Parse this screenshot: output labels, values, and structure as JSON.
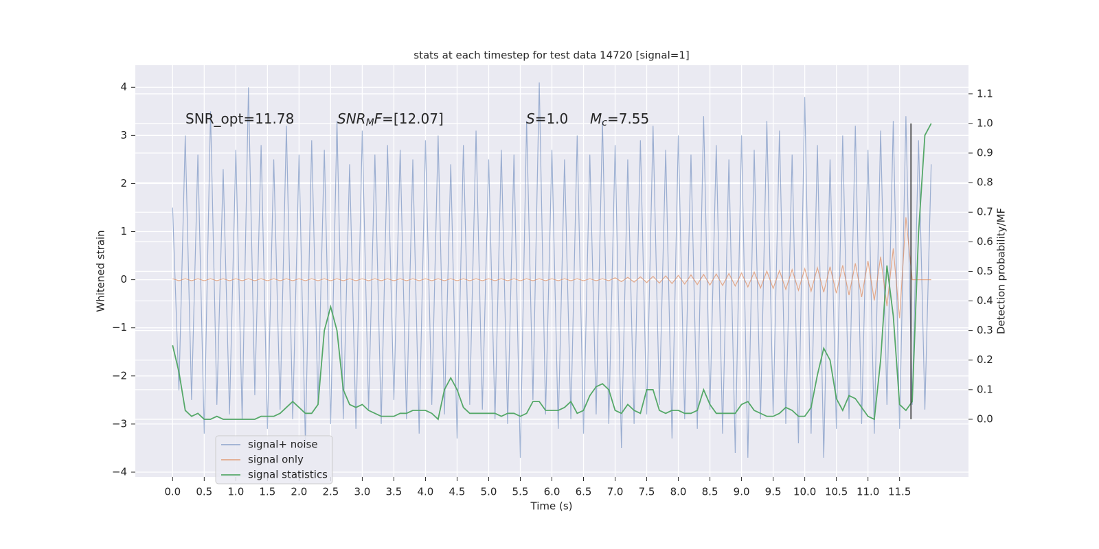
{
  "chart_data": {
    "type": "line",
    "title": "stats at each timestep for test data 14720 [signal=1]",
    "xlabel": "Time (s)",
    "ylabel": "Whitened strain",
    "y2label": "Detection probability/MF",
    "xlim": [
      -0.59,
      12.59
    ],
    "ylim": [
      -4.1,
      4.46
    ],
    "y2lim": [
      -0.195,
      1.197
    ],
    "xticks": [
      {
        "value": 0,
        "label": "0.0"
      },
      0.5,
      {
        "value": 1,
        "label": "1.0"
      },
      1.5,
      {
        "value": 2,
        "label": "2.0"
      },
      2.5,
      {
        "value": 3,
        "label": "3.0"
      },
      3.5,
      {
        "value": 4,
        "label": "4.0"
      },
      4.5,
      {
        "value": 5,
        "label": "5.0"
      },
      5.5,
      {
        "value": 6,
        "label": "6.0"
      },
      6.5,
      {
        "value": 7,
        "label": "7.0"
      },
      7.5,
      {
        "value": 8,
        "label": "8.0"
      },
      8.5,
      {
        "value": 9,
        "label": "9.0"
      },
      9.5,
      {
        "value": 10,
        "label": "10.0"
      },
      10.5,
      {
        "value": 11,
        "label": "11.0"
      },
      11.5
    ],
    "yticks": [
      {
        "value": -4,
        "label": "−4"
      },
      {
        "value": -3,
        "label": "−3"
      },
      {
        "value": -2,
        "label": "−2"
      },
      {
        "value": -1,
        "label": "−1"
      },
      0,
      1,
      2,
      3,
      4
    ],
    "y2ticks": [
      {
        "value": 0,
        "label": "0.0"
      },
      0.1,
      0.2,
      0.3,
      0.4,
      0.5,
      0.6,
      0.7,
      0.8,
      0.9,
      {
        "value": 1,
        "label": "1.0"
      },
      1.1
    ],
    "grid": true,
    "legend": "lower left",
    "x": [
      0,
      0.1,
      0.2,
      0.3,
      0.4,
      0.5,
      0.6,
      0.7,
      0.8,
      0.9,
      1,
      1.1,
      1.2,
      1.3,
      1.4,
      1.5,
      1.6,
      1.7,
      1.8,
      1.9,
      2,
      2.1,
      2.2,
      2.3,
      2.4,
      2.5,
      2.6,
      2.7,
      2.8,
      2.9,
      3,
      3.1,
      3.2,
      3.3,
      3.4,
      3.5,
      3.6,
      3.7,
      3.8,
      3.9,
      4,
      4.1,
      4.2,
      4.3,
      4.4,
      4.5,
      4.6,
      4.7,
      4.8,
      4.9,
      5,
      5.1,
      5.2,
      5.3,
      5.4,
      5.5,
      5.6,
      5.7,
      5.8,
      5.9,
      6,
      6.1,
      6.2,
      6.3,
      6.4,
      6.5,
      6.6,
      6.7,
      6.8,
      6.9,
      7,
      7.1,
      7.2,
      7.3,
      7.4,
      7.5,
      7.6,
      7.7,
      7.8,
      7.9,
      8,
      8.1,
      8.2,
      8.3,
      8.4,
      8.5,
      8.6,
      8.7,
      8.8,
      8.9,
      9,
      9.1,
      9.2,
      9.3,
      9.4,
      9.5,
      9.6,
      9.7,
      9.8,
      9.9,
      10,
      10.1,
      10.2,
      10.3,
      10.4,
      10.5,
      10.6,
      10.7,
      10.8,
      10.9,
      11,
      11.1,
      11.2,
      11.3,
      11.4,
      11.5,
      11.6,
      11.7,
      11.8,
      11.9,
      12
    ],
    "series": [
      {
        "name": "signal+ noise",
        "color": "#4c72b0",
        "opacity": 0.5,
        "values": [
          1.5,
          -2.3,
          3.0,
          -2.5,
          2.6,
          -3.2,
          3.5,
          -2.6,
          2.3,
          -2.8,
          2.7,
          -2.9,
          4.0,
          -2.4,
          2.8,
          -3.1,
          2.5,
          -2.7,
          3.2,
          -2.9,
          2.6,
          -3.4,
          2.9,
          -2.6,
          2.7,
          -3.0,
          3.3,
          -2.9,
          2.4,
          -3.1,
          3.1,
          -2.7,
          2.6,
          -3.0,
          2.8,
          -2.5,
          2.7,
          -2.9,
          2.5,
          -3.2,
          2.9,
          -2.6,
          3.0,
          -2.8,
          2.4,
          -3.3,
          2.8,
          -2.6,
          3.1,
          -2.7,
          2.5,
          -2.9,
          2.7,
          -3.0,
          2.6,
          -3.7,
          3.3,
          -2.5,
          4.1,
          -2.8,
          2.7,
          -3.1,
          2.5,
          -2.9,
          3.0,
          -3.2,
          2.6,
          -2.8,
          3.3,
          -3.0,
          2.8,
          -3.5,
          2.5,
          -3.0,
          2.9,
          -2.8,
          3.2,
          -2.6,
          2.7,
          -3.3,
          3.0,
          -2.9,
          2.6,
          -3.1,
          3.4,
          -2.7,
          2.8,
          -3.2,
          2.5,
          -3.6,
          3.0,
          -3.7,
          2.7,
          -2.9,
          3.3,
          -2.8,
          3.1,
          -3.0,
          2.6,
          -3.4,
          3.8,
          -3.2,
          2.8,
          -3.7,
          2.5,
          -3.1,
          3.0,
          -2.9,
          3.2,
          -3.0,
          2.7,
          -3.2,
          3.1,
          -2.6,
          3.3,
          -3.1,
          3.4,
          -2.6,
          2.9,
          -2.7,
          2.4
        ]
      },
      {
        "name": "signal only",
        "color": "#dd8452",
        "opacity": 0.65,
        "values": [
          0.02,
          -0.02,
          0.02,
          -0.02,
          0.02,
          -0.02,
          0.02,
          -0.02,
          0.02,
          -0.02,
          0.02,
          -0.02,
          0.02,
          -0.02,
          0.02,
          -0.02,
          0.02,
          -0.02,
          0.02,
          -0.02,
          0.02,
          -0.02,
          0.02,
          -0.02,
          0.02,
          -0.02,
          0.02,
          -0.02,
          0.02,
          -0.02,
          0.02,
          -0.02,
          0.02,
          -0.02,
          0.02,
          -0.02,
          0.02,
          -0.02,
          0.02,
          -0.02,
          0.02,
          -0.02,
          0.02,
          -0.02,
          0.02,
          -0.02,
          0.02,
          -0.02,
          0.02,
          -0.02,
          0.02,
          -0.02,
          0.02,
          -0.02,
          0.02,
          -0.02,
          0.02,
          -0.02,
          0.02,
          -0.02,
          0.02,
          -0.02,
          0.02,
          -0.02,
          0.02,
          -0.02,
          0.02,
          -0.02,
          0.02,
          -0.02,
          0.04,
          -0.04,
          0.05,
          -0.05,
          0.06,
          -0.06,
          0.07,
          -0.07,
          0.08,
          -0.08,
          0.09,
          -0.09,
          0.1,
          -0.1,
          0.11,
          -0.11,
          0.12,
          -0.12,
          0.13,
          -0.13,
          0.14,
          -0.15,
          0.16,
          -0.17,
          0.18,
          -0.18,
          0.19,
          -0.2,
          0.21,
          -0.22,
          0.23,
          -0.24,
          0.25,
          -0.26,
          0.27,
          -0.28,
          0.3,
          -0.32,
          0.34,
          -0.36,
          0.39,
          -0.43,
          0.48,
          -0.55,
          0.65,
          -0.8,
          1.3,
          0,
          0,
          0,
          0
        ]
      },
      {
        "name": "signal statistics",
        "color": "#55a868",
        "opacity": 1,
        "axis": "y2",
        "values": [
          0.25,
          0.16,
          0.03,
          0.01,
          0.02,
          0.0,
          0.0,
          0.01,
          0.0,
          0.0,
          0.0,
          0.0,
          0.0,
          0.0,
          0.01,
          0.01,
          0.01,
          0.02,
          0.04,
          0.06,
          0.04,
          0.02,
          0.02,
          0.05,
          0.3,
          0.38,
          0.3,
          0.1,
          0.05,
          0.04,
          0.05,
          0.03,
          0.02,
          0.01,
          0.01,
          0.01,
          0.02,
          0.02,
          0.03,
          0.03,
          0.03,
          0.02,
          0.0,
          0.1,
          0.14,
          0.1,
          0.04,
          0.02,
          0.02,
          0.02,
          0.02,
          0.02,
          0.01,
          0.02,
          0.02,
          0.01,
          0.02,
          0.06,
          0.06,
          0.03,
          0.03,
          0.03,
          0.04,
          0.06,
          0.02,
          0.03,
          0.08,
          0.11,
          0.12,
          0.1,
          0.03,
          0.02,
          0.05,
          0.03,
          0.02,
          0.1,
          0.1,
          0.03,
          0.02,
          0.03,
          0.03,
          0.02,
          0.02,
          0.03,
          0.1,
          0.05,
          0.02,
          0.02,
          0.02,
          0.02,
          0.05,
          0.06,
          0.03,
          0.02,
          0.01,
          0.01,
          0.02,
          0.04,
          0.03,
          0.01,
          0.01,
          0.04,
          0.15,
          0.24,
          0.2,
          0.07,
          0.03,
          0.08,
          0.07,
          0.04,
          0.01,
          0.0,
          0.2,
          0.52,
          0.35,
          0.05,
          0.03,
          0.06,
          0.63,
          0.96,
          1.0
        ]
      }
    ],
    "vline": {
      "x": 11.68,
      "ymin": -2.9,
      "ymax": 3.25,
      "color": "#333333"
    },
    "annotations": [
      [
        {
          "text": "SNR_opt=11.78",
          "style": "normal"
        }
      ],
      [
        {
          "text": "SNR",
          "style": "italic"
        },
        {
          "text": "M",
          "style": "sub"
        },
        {
          "text": "F",
          "style": "italic"
        },
        {
          "text": "=[12.07]",
          "style": "normal"
        }
      ],
      [
        {
          "text": "S",
          "style": "italic"
        },
        {
          "text": "=1.0",
          "style": "normal"
        }
      ],
      [
        {
          "text": "M",
          "style": "italic"
        },
        {
          "text": "c",
          "style": "sub"
        },
        {
          "text": "=7.55",
          "style": "normal"
        }
      ]
    ]
  }
}
